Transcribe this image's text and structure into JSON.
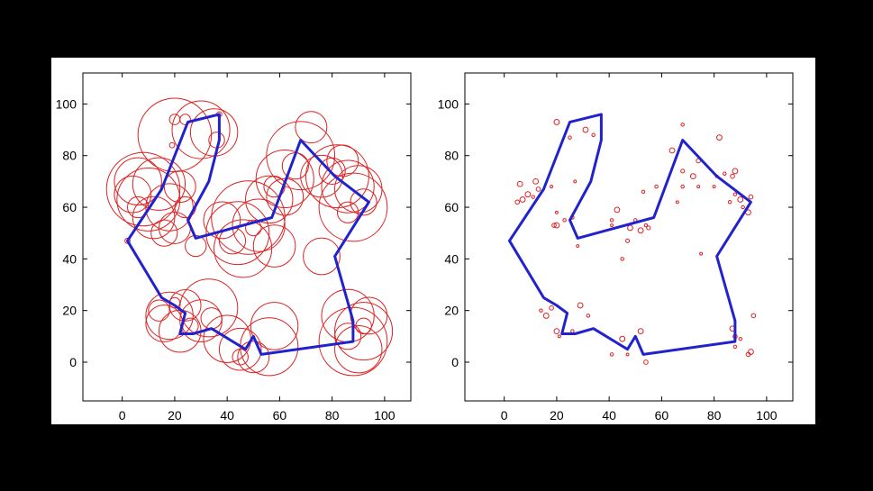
{
  "colors": {
    "background": "#000000",
    "panel": "#ffffff",
    "path": "#2222cc",
    "circles": "#dd2222"
  },
  "chart_data": [
    {
      "type": "scatter",
      "title": "",
      "xlabel": "",
      "ylabel": "",
      "xlim": [
        -15,
        110
      ],
      "ylim": [
        -15,
        112
      ],
      "xticks": [
        "0",
        "20",
        "40",
        "60",
        "80",
        "100"
      ],
      "yticks": [
        "0",
        "20",
        "40",
        "60",
        "80",
        "100"
      ],
      "grid": false,
      "path": [
        [
          2,
          47
        ],
        [
          15,
          67
        ],
        [
          25,
          93
        ],
        [
          37,
          96
        ],
        [
          37,
          86
        ],
        [
          33,
          70
        ],
        [
          25,
          55
        ],
        [
          28,
          48
        ],
        [
          57,
          56
        ],
        [
          68,
          86
        ],
        [
          81,
          72
        ],
        [
          94,
          62
        ],
        [
          81,
          41
        ],
        [
          88,
          16
        ],
        [
          88,
          8
        ],
        [
          53,
          3
        ],
        [
          50,
          10
        ],
        [
          47,
          5
        ],
        [
          34,
          13
        ],
        [
          27,
          11
        ],
        [
          22,
          11
        ],
        [
          24,
          19
        ],
        [
          20,
          22
        ],
        [
          15,
          25
        ],
        [
          2,
          47
        ]
      ],
      "circles": [
        {
          "x": 20,
          "y": 88,
          "r": 14
        },
        {
          "x": 30,
          "y": 90,
          "r": 11
        },
        {
          "x": 35,
          "y": 89,
          "r": 9
        },
        {
          "x": 24,
          "y": 94,
          "r": 2
        },
        {
          "x": 37,
          "y": 96,
          "r": 1
        },
        {
          "x": 19,
          "y": 84,
          "r": 1
        },
        {
          "x": 36,
          "y": 86,
          "r": 3
        },
        {
          "x": 20,
          "y": 94,
          "r": 2
        },
        {
          "x": 8,
          "y": 67,
          "r": 14
        },
        {
          "x": 10,
          "y": 63,
          "r": 12
        },
        {
          "x": 14,
          "y": 69,
          "r": 10
        },
        {
          "x": 6,
          "y": 70,
          "r": 9
        },
        {
          "x": 12,
          "y": 56,
          "r": 8
        },
        {
          "x": 18,
          "y": 60,
          "r": 9
        },
        {
          "x": 4,
          "y": 65,
          "r": 7
        },
        {
          "x": 2,
          "y": 47,
          "r": 1
        },
        {
          "x": 22,
          "y": 68,
          "r": 6
        },
        {
          "x": 16,
          "y": 50,
          "r": 5
        },
        {
          "x": 6,
          "y": 60,
          "r": 4
        },
        {
          "x": 28,
          "y": 45,
          "r": 4
        },
        {
          "x": 20,
          "y": 52,
          "r": 6
        },
        {
          "x": 24,
          "y": 60,
          "r": 4
        },
        {
          "x": 48,
          "y": 56,
          "r": 14
        },
        {
          "x": 44,
          "y": 50,
          "r": 12
        },
        {
          "x": 52,
          "y": 53,
          "r": 10
        },
        {
          "x": 46,
          "y": 44,
          "r": 11
        },
        {
          "x": 38,
          "y": 55,
          "r": 7
        },
        {
          "x": 56,
          "y": 63,
          "r": 9
        },
        {
          "x": 58,
          "y": 45,
          "r": 8
        },
        {
          "x": 42,
          "y": 47,
          "r": 5
        },
        {
          "x": 50,
          "y": 52,
          "r": 3
        },
        {
          "x": 68,
          "y": 80,
          "r": 13
        },
        {
          "x": 62,
          "y": 71,
          "r": 11
        },
        {
          "x": 72,
          "y": 91,
          "r": 6
        },
        {
          "x": 76,
          "y": 72,
          "r": 8
        },
        {
          "x": 62,
          "y": 64,
          "r": 7
        },
        {
          "x": 66,
          "y": 76,
          "r": 5
        },
        {
          "x": 58,
          "y": 68,
          "r": 4
        },
        {
          "x": 80,
          "y": 74,
          "r": 5
        },
        {
          "x": 82,
          "y": 72,
          "r": 12
        },
        {
          "x": 86,
          "y": 68,
          "r": 10
        },
        {
          "x": 88,
          "y": 60,
          "r": 13
        },
        {
          "x": 90,
          "y": 67,
          "r": 9
        },
        {
          "x": 84,
          "y": 78,
          "r": 6
        },
        {
          "x": 92,
          "y": 62,
          "r": 5
        },
        {
          "x": 86,
          "y": 58,
          "r": 4
        },
        {
          "x": 76,
          "y": 41,
          "r": 7
        },
        {
          "x": 18,
          "y": 18,
          "r": 9
        },
        {
          "x": 22,
          "y": 12,
          "r": 8
        },
        {
          "x": 16,
          "y": 15,
          "r": 7
        },
        {
          "x": 30,
          "y": 16,
          "r": 8
        },
        {
          "x": 33,
          "y": 21,
          "r": 11
        },
        {
          "x": 24,
          "y": 22,
          "r": 6
        },
        {
          "x": 14,
          "y": 20,
          "r": 4
        },
        {
          "x": 34,
          "y": 17,
          "r": 4
        },
        {
          "x": 26,
          "y": 14,
          "r": 3
        },
        {
          "x": 20,
          "y": 23,
          "r": 2
        },
        {
          "x": 45,
          "y": 5,
          "r": 8
        },
        {
          "x": 40,
          "y": 9,
          "r": 9
        },
        {
          "x": 56,
          "y": 6,
          "r": 11
        },
        {
          "x": 50,
          "y": 2,
          "r": 6
        },
        {
          "x": 58,
          "y": 14,
          "r": 9
        },
        {
          "x": 45,
          "y": 2,
          "r": 3
        },
        {
          "x": 88,
          "y": 8,
          "r": 13
        },
        {
          "x": 92,
          "y": 12,
          "r": 11
        },
        {
          "x": 86,
          "y": 18,
          "r": 10
        },
        {
          "x": 90,
          "y": 5,
          "r": 9
        },
        {
          "x": 94,
          "y": 18,
          "r": 7
        },
        {
          "x": 86,
          "y": 10,
          "r": 5
        },
        {
          "x": 92,
          "y": 14,
          "r": 3
        }
      ]
    },
    {
      "type": "scatter",
      "title": "",
      "xlabel": "",
      "ylabel": "",
      "xlim": [
        -15,
        110
      ],
      "ylim": [
        -15,
        112
      ],
      "xticks": [
        "0",
        "20",
        "40",
        "60",
        "80",
        "100"
      ],
      "yticks": [
        "0",
        "20",
        "40",
        "60",
        "80",
        "100"
      ],
      "grid": false,
      "path": [
        [
          2,
          47
        ],
        [
          15,
          67
        ],
        [
          25,
          93
        ],
        [
          37,
          96
        ],
        [
          37,
          86
        ],
        [
          33,
          70
        ],
        [
          25,
          55
        ],
        [
          28,
          48
        ],
        [
          57,
          56
        ],
        [
          68,
          86
        ],
        [
          81,
          72
        ],
        [
          94,
          62
        ],
        [
          81,
          41
        ],
        [
          88,
          16
        ],
        [
          88,
          8
        ],
        [
          53,
          3
        ],
        [
          50,
          10
        ],
        [
          47,
          5
        ],
        [
          34,
          13
        ],
        [
          27,
          11
        ],
        [
          22,
          11
        ],
        [
          24,
          19
        ],
        [
          20,
          22
        ],
        [
          15,
          25
        ],
        [
          2,
          47
        ]
      ],
      "circles": [
        {
          "x": 20,
          "y": 93,
          "r": 1
        },
        {
          "x": 31,
          "y": 90,
          "r": 1
        },
        {
          "x": 34,
          "y": 88,
          "r": 0.6
        },
        {
          "x": 25,
          "y": 87,
          "r": 0.6
        },
        {
          "x": 27,
          "y": 70,
          "r": 0.5
        },
        {
          "x": 6,
          "y": 69,
          "r": 1
        },
        {
          "x": 12,
          "y": 70,
          "r": 1
        },
        {
          "x": 9,
          "y": 65,
          "r": 1
        },
        {
          "x": 7,
          "y": 63,
          "r": 1
        },
        {
          "x": 13,
          "y": 67,
          "r": 0.8
        },
        {
          "x": 5,
          "y": 62,
          "r": 0.8
        },
        {
          "x": 11,
          "y": 64,
          "r": 0.6
        },
        {
          "x": 18,
          "y": 68,
          "r": 0.5
        },
        {
          "x": 20,
          "y": 53,
          "r": 1
        },
        {
          "x": 19,
          "y": 53,
          "r": 0.8
        },
        {
          "x": 23,
          "y": 55,
          "r": 0.6
        },
        {
          "x": 20,
          "y": 58,
          "r": 0.5
        },
        {
          "x": 28,
          "y": 45,
          "r": 0.5
        },
        {
          "x": 26,
          "y": 56,
          "r": 0.6
        },
        {
          "x": 43,
          "y": 59,
          "r": 1
        },
        {
          "x": 48,
          "y": 52,
          "r": 1
        },
        {
          "x": 52,
          "y": 51,
          "r": 1
        },
        {
          "x": 47,
          "y": 47,
          "r": 0.7
        },
        {
          "x": 41,
          "y": 55,
          "r": 0.6
        },
        {
          "x": 55,
          "y": 52,
          "r": 0.7
        },
        {
          "x": 54,
          "y": 53,
          "r": 0.6
        },
        {
          "x": 53,
          "y": 66,
          "r": 0.6
        },
        {
          "x": 58,
          "y": 68,
          "r": 0.6
        },
        {
          "x": 50,
          "y": 55,
          "r": 0.6
        },
        {
          "x": 64,
          "y": 82,
          "r": 1
        },
        {
          "x": 72,
          "y": 72,
          "r": 1
        },
        {
          "x": 74,
          "y": 78,
          "r": 0.8
        },
        {
          "x": 68,
          "y": 92,
          "r": 0.6
        },
        {
          "x": 68,
          "y": 74,
          "r": 0.7
        },
        {
          "x": 68,
          "y": 68,
          "r": 0.6
        },
        {
          "x": 66,
          "y": 62,
          "r": 0.5
        },
        {
          "x": 74,
          "y": 68,
          "r": 0.5
        },
        {
          "x": 80,
          "y": 68,
          "r": 0.5
        },
        {
          "x": 81,
          "y": 72,
          "r": 0.5
        },
        {
          "x": 84,
          "y": 73,
          "r": 0.6
        },
        {
          "x": 82,
          "y": 87,
          "r": 1
        },
        {
          "x": 88,
          "y": 74,
          "r": 1
        },
        {
          "x": 87,
          "y": 72,
          "r": 0.8
        },
        {
          "x": 90,
          "y": 63,
          "r": 1
        },
        {
          "x": 93,
          "y": 58,
          "r": 1
        },
        {
          "x": 94,
          "y": 64,
          "r": 0.8
        },
        {
          "x": 88,
          "y": 65,
          "r": 0.6
        },
        {
          "x": 91,
          "y": 60,
          "r": 0.6
        },
        {
          "x": 86,
          "y": 62,
          "r": 0.6
        },
        {
          "x": 75,
          "y": 42,
          "r": 0.5
        },
        {
          "x": 45,
          "y": 40,
          "r": 0.6
        },
        {
          "x": 41,
          "y": 53,
          "r": 0.5
        },
        {
          "x": 16,
          "y": 18,
          "r": 1
        },
        {
          "x": 20,
          "y": 12,
          "r": 1
        },
        {
          "x": 18,
          "y": 21,
          "r": 0.8
        },
        {
          "x": 29,
          "y": 22,
          "r": 1
        },
        {
          "x": 32,
          "y": 18,
          "r": 0.6
        },
        {
          "x": 14,
          "y": 20,
          "r": 0.6
        },
        {
          "x": 26,
          "y": 12,
          "r": 0.6
        },
        {
          "x": 21,
          "y": 10,
          "r": 0.5
        },
        {
          "x": 45,
          "y": 9,
          "r": 1
        },
        {
          "x": 52,
          "y": 12,
          "r": 1
        },
        {
          "x": 54,
          "y": 0,
          "r": 0.8
        },
        {
          "x": 41,
          "y": 3,
          "r": 0.6
        },
        {
          "x": 47,
          "y": 3,
          "r": 0.5
        },
        {
          "x": 87,
          "y": 13,
          "r": 1
        },
        {
          "x": 88,
          "y": 10,
          "r": 0.8
        },
        {
          "x": 90,
          "y": 9,
          "r": 0.6
        },
        {
          "x": 95,
          "y": 18,
          "r": 0.8
        },
        {
          "x": 94,
          "y": 4,
          "r": 1
        },
        {
          "x": 93,
          "y": 3,
          "r": 0.8
        },
        {
          "x": 88,
          "y": 6,
          "r": 0.6
        }
      ]
    }
  ]
}
